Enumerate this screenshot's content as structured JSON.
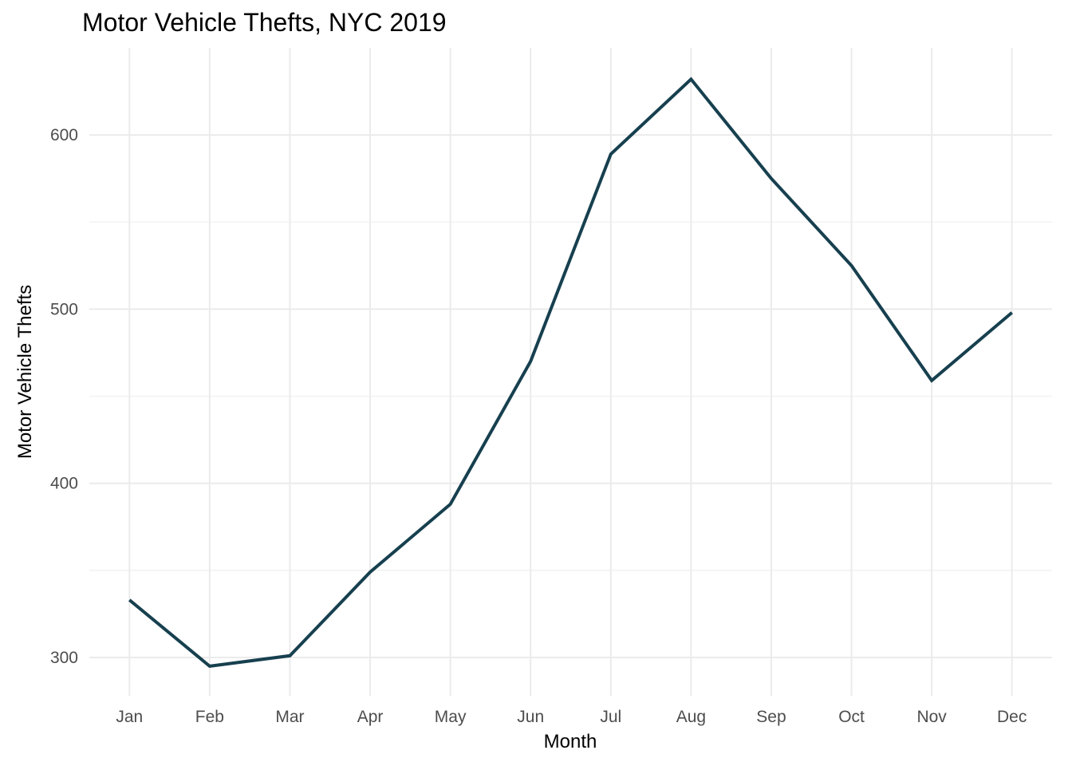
{
  "chart_data": {
    "type": "line",
    "title": "Motor Vehicle Thefts, NYC 2019",
    "xlabel": "Month",
    "ylabel": "Motor Vehicle Thefts",
    "categories": [
      "Jan",
      "Feb",
      "Mar",
      "Apr",
      "May",
      "Jun",
      "Jul",
      "Aug",
      "Sep",
      "Oct",
      "Nov",
      "Dec"
    ],
    "values": [
      333,
      295,
      301,
      349,
      388,
      470,
      589,
      632,
      575,
      525,
      459,
      498
    ],
    "y_ticks": [
      300,
      400,
      500,
      600
    ],
    "y_minor_ticks": [
      350,
      450,
      550
    ],
    "ylim": [
      278,
      650
    ],
    "legend_position": "none",
    "grid": "major-and-minor, ggplot-minimal style",
    "colors": {
      "line": "#17404F",
      "background": "#FFFFFF",
      "grid_major": "#EBEBEB",
      "grid_minor": "#F3F3F3",
      "tick_label": "#4D4D4D",
      "title_text": "#000000"
    }
  }
}
